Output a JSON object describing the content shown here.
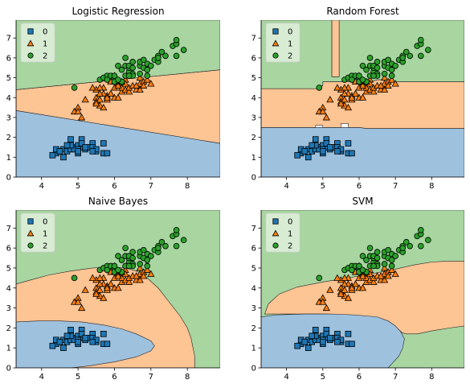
{
  "chart_data": [
    {
      "type": "scatter",
      "title": "Logistic Regression",
      "xlabel": "",
      "ylabel": "",
      "xlim": [
        3.3,
        8.9
      ],
      "ylim": [
        0,
        7.9
      ],
      "xticks": [
        4,
        5,
        6,
        7,
        8
      ],
      "yticks": [
        0,
        1,
        2,
        3,
        4,
        5,
        6,
        7
      ],
      "legend": {
        "position": "top-left",
        "entries": [
          "0",
          "1",
          "2"
        ]
      },
      "regions": [
        {
          "class": "0",
          "polygon": [
            [
              3.3,
              0
            ],
            [
              8.9,
              0
            ],
            [
              8.9,
              1.7
            ],
            [
              3.3,
              3.35
            ]
          ]
        },
        {
          "class": "1",
          "polygon": [
            [
              3.3,
              3.35
            ],
            [
              8.9,
              1.7
            ],
            [
              8.9,
              5.4
            ],
            [
              3.3,
              4.4
            ]
          ]
        },
        {
          "class": "2",
          "polygon": [
            [
              3.3,
              4.4
            ],
            [
              8.9,
              5.4
            ],
            [
              8.9,
              7.9
            ],
            [
              3.3,
              7.9
            ]
          ]
        }
      ]
    },
    {
      "type": "scatter",
      "title": "Random Forest",
      "xlabel": "",
      "ylabel": "",
      "xlim": [
        3.3,
        8.9
      ],
      "ylim": [
        0,
        7.9
      ],
      "xticks": [
        4,
        5,
        6,
        7,
        8
      ],
      "yticks": [
        0,
        1,
        2,
        3,
        4,
        5,
        6,
        7
      ],
      "legend": {
        "position": "top-left",
        "entries": [
          "0",
          "1",
          "2"
        ]
      },
      "regions": [
        {
          "class": "0",
          "polygon": [
            [
              3.3,
              0
            ],
            [
              8.9,
              0
            ],
            [
              8.9,
              2.45
            ],
            [
              6.2,
              2.45
            ],
            [
              6.0,
              2.5
            ],
            [
              5.0,
              2.5
            ],
            [
              4.8,
              2.5
            ],
            [
              3.3,
              2.5
            ]
          ]
        },
        {
          "class": "1",
          "polygon": [
            [
              3.3,
              2.5
            ],
            [
              4.8,
              2.5
            ],
            [
              4.8,
              2.6
            ],
            [
              5.0,
              2.6
            ],
            [
              5.0,
              2.5
            ],
            [
              5.5,
              2.5
            ],
            [
              5.5,
              2.7
            ],
            [
              5.7,
              2.7
            ],
            [
              5.7,
              2.5
            ],
            [
              6.0,
              2.5
            ],
            [
              6.2,
              2.45
            ],
            [
              8.9,
              2.45
            ],
            [
              8.9,
              4.8
            ],
            [
              7.0,
              4.8
            ],
            [
              6.9,
              4.9
            ],
            [
              6.5,
              4.9
            ],
            [
              6.3,
              4.8
            ],
            [
              5.0,
              4.8
            ],
            [
              5.0,
              4.6
            ],
            [
              4.9,
              4.6
            ],
            [
              4.9,
              4.45
            ],
            [
              3.3,
              4.45
            ]
          ]
        },
        {
          "class": "2",
          "polygon": [
            [
              3.3,
              4.45
            ],
            [
              4.9,
              4.45
            ],
            [
              4.9,
              4.6
            ],
            [
              5.0,
              4.6
            ],
            [
              5.0,
              4.8
            ],
            [
              6.3,
              4.8
            ],
            [
              6.5,
              4.9
            ],
            [
              6.9,
              4.9
            ],
            [
              7.0,
              4.8
            ],
            [
              8.9,
              4.8
            ],
            [
              8.9,
              7.9
            ],
            [
              5.45,
              7.9
            ],
            [
              5.45,
              5.05
            ],
            [
              5.25,
              5.05
            ],
            [
              5.25,
              7.9
            ],
            [
              3.3,
              7.9
            ]
          ]
        },
        {
          "class": "1",
          "polygon": [
            [
              5.25,
              5.05
            ],
            [
              5.45,
              5.05
            ],
            [
              5.45,
              7.9
            ],
            [
              5.25,
              7.9
            ]
          ]
        }
      ]
    },
    {
      "type": "scatter",
      "title": "Naive Bayes",
      "xlabel": "",
      "ylabel": "",
      "xlim": [
        3.3,
        8.9
      ],
      "ylim": [
        0,
        7.9
      ],
      "xticks": [
        4,
        5,
        6,
        7,
        8
      ],
      "yticks": [
        0,
        1,
        2,
        3,
        4,
        5,
        6,
        7
      ],
      "legend": {
        "position": "top-left",
        "entries": [
          "0",
          "1",
          "2"
        ]
      },
      "regions": [
        {
          "class": "2",
          "polygon": [
            [
              3.3,
              0
            ],
            [
              8.9,
              0
            ],
            [
              8.9,
              7.9
            ],
            [
              3.3,
              7.9
            ]
          ]
        },
        {
          "class": "1",
          "polygon": [
            [
              3.3,
              0
            ],
            [
              8.2,
              0
            ],
            [
              8.2,
              0.6
            ],
            [
              8.1,
              1.5
            ],
            [
              8.0,
              2.0
            ],
            [
              7.8,
              2.6
            ],
            [
              7.5,
              3.3
            ],
            [
              7.2,
              4.0
            ],
            [
              6.9,
              4.5
            ],
            [
              6.6,
              4.85
            ],
            [
              6.3,
              5.0
            ],
            [
              5.9,
              5.05
            ],
            [
              5.4,
              5.0
            ],
            [
              4.8,
              4.85
            ],
            [
              4.2,
              4.65
            ],
            [
              3.8,
              4.45
            ],
            [
              3.3,
              4.2
            ]
          ]
        },
        {
          "class": "0",
          "polygon": [
            [
              3.3,
              0
            ],
            [
              3.3,
              2.3
            ],
            [
              3.9,
              2.35
            ],
            [
              4.5,
              2.35
            ],
            [
              5.1,
              2.3
            ],
            [
              5.7,
              2.15
            ],
            [
              6.2,
              1.95
            ],
            [
              6.6,
              1.7
            ],
            [
              7.0,
              1.35
            ],
            [
              7.1,
              1.1
            ],
            [
              7.0,
              0.85
            ],
            [
              6.6,
              0.55
            ],
            [
              6.0,
              0.3
            ],
            [
              5.3,
              0.1
            ],
            [
              4.8,
              0
            ],
            [
              3.3,
              0
            ]
          ]
        }
      ]
    },
    {
      "type": "scatter",
      "title": "SVM",
      "xlabel": "",
      "ylabel": "",
      "xlim": [
        3.3,
        8.9
      ],
      "ylim": [
        0,
        7.9
      ],
      "xticks": [
        4,
        5,
        6,
        7,
        8
      ],
      "yticks": [
        0,
        1,
        2,
        3,
        4,
        5,
        6,
        7
      ],
      "legend": {
        "position": "top-left",
        "entries": [
          "0",
          "1",
          "2"
        ]
      },
      "regions": [
        {
          "class": "2",
          "polygon": [
            [
              3.3,
              0
            ],
            [
              8.9,
              0
            ],
            [
              8.9,
              7.9
            ],
            [
              3.3,
              7.9
            ]
          ]
        },
        {
          "class": "1",
          "polygon": [
            [
              3.4,
              2.7
            ],
            [
              3.5,
              3.2
            ],
            [
              3.8,
              3.7
            ],
            [
              4.3,
              4.05
            ],
            [
              5.0,
              4.3
            ],
            [
              5.7,
              4.5
            ],
            [
              6.3,
              4.7
            ],
            [
              6.9,
              4.9
            ],
            [
              7.5,
              5.15
            ],
            [
              8.0,
              5.3
            ],
            [
              8.5,
              5.35
            ],
            [
              8.9,
              5.35
            ],
            [
              8.9,
              2.1
            ],
            [
              8.5,
              2.0
            ],
            [
              8.0,
              1.85
            ],
            [
              7.6,
              1.7
            ],
            [
              7.3,
              1.7
            ],
            [
              7.2,
              1.75
            ],
            [
              7.1,
              1.9
            ],
            [
              7.0,
              2.05
            ],
            [
              6.8,
              2.3
            ],
            [
              6.4,
              2.55
            ],
            [
              5.8,
              2.65
            ],
            [
              5.0,
              2.7
            ],
            [
              4.2,
              2.7
            ],
            [
              3.4,
              2.7
            ]
          ]
        },
        {
          "class": "0",
          "polygon": [
            [
              3.3,
              0
            ],
            [
              3.3,
              2.55
            ],
            [
              3.7,
              2.65
            ],
            [
              4.5,
              2.7
            ],
            [
              5.2,
              2.7
            ],
            [
              5.9,
              2.65
            ],
            [
              6.5,
              2.55
            ],
            [
              6.8,
              2.35
            ],
            [
              7.0,
              2.1
            ],
            [
              7.15,
              1.8
            ],
            [
              7.25,
              1.45
            ],
            [
              7.2,
              1.0
            ],
            [
              7.1,
              0.6
            ],
            [
              6.9,
              0.2
            ],
            [
              6.8,
              0
            ],
            [
              3.3,
              0
            ]
          ]
        }
      ]
    }
  ],
  "classes": [
    {
      "label": "0",
      "marker": "square",
      "color": "#1f77b4"
    },
    {
      "label": "1",
      "marker": "triangle",
      "color": "#ff7f0e"
    },
    {
      "label": "2",
      "marker": "circle",
      "color": "#2ca02c"
    }
  ],
  "region_colors": {
    "0": "#9ec1de",
    "1": "#fdc494",
    "2": "#a8d5a0"
  },
  "points": {
    "0": [
      [
        4.4,
        1.2
      ],
      [
        4.5,
        1.3
      ],
      [
        4.6,
        1.4
      ],
      [
        4.7,
        1.3
      ],
      [
        4.8,
        1.4
      ],
      [
        4.9,
        1.5
      ],
      [
        5.0,
        1.6
      ],
      [
        5.0,
        1.2
      ],
      [
        5.1,
        1.5
      ],
      [
        5.2,
        1.4
      ],
      [
        5.3,
        1.5
      ],
      [
        5.4,
        1.7
      ],
      [
        5.5,
        1.3
      ],
      [
        5.7,
        1.7
      ],
      [
        4.3,
        1.1
      ],
      [
        4.6,
        1.0
      ],
      [
        4.9,
        1.4
      ],
      [
        5.1,
        1.9
      ],
      [
        5.0,
        1.4
      ],
      [
        4.8,
        1.6
      ],
      [
        5.7,
        1.2
      ],
      [
        4.4,
        1.4
      ],
      [
        5.4,
        1.5
      ],
      [
        5.1,
        1.7
      ],
      [
        5.2,
        1.5
      ],
      [
        4.7,
        1.6
      ],
      [
        5.8,
        1.2
      ],
      [
        5.5,
        1.4
      ],
      [
        4.8,
        1.9
      ],
      [
        5.0,
        1.3
      ],
      [
        5.4,
        1.3
      ],
      [
        4.5,
        1.3
      ]
    ],
    "1": [
      [
        4.9,
        3.3
      ],
      [
        5.0,
        3.5
      ],
      [
        5.1,
        3.0
      ],
      [
        5.0,
        3.3
      ],
      [
        5.2,
        3.9
      ],
      [
        5.5,
        4.0
      ],
      [
        5.5,
        3.8
      ],
      [
        5.6,
        3.6
      ],
      [
        5.6,
        3.9
      ],
      [
        5.7,
        3.5
      ],
      [
        5.7,
        4.2
      ],
      [
        5.8,
        4.1
      ],
      [
        5.8,
        3.9
      ],
      [
        5.9,
        4.8
      ],
      [
        6.0,
        4.0
      ],
      [
        6.0,
        4.5
      ],
      [
        6.0,
        5.1
      ],
      [
        6.1,
        4.0
      ],
      [
        6.1,
        4.7
      ],
      [
        6.2,
        4.3
      ],
      [
        6.2,
        4.5
      ],
      [
        6.3,
        4.4
      ],
      [
        6.3,
        4.9
      ],
      [
        6.4,
        4.3
      ],
      [
        6.4,
        4.5
      ],
      [
        6.5,
        4.6
      ],
      [
        6.6,
        4.4
      ],
      [
        6.7,
        4.4
      ],
      [
        6.7,
        4.7
      ],
      [
        6.7,
        5.0
      ],
      [
        6.8,
        4.8
      ],
      [
        6.9,
        4.9
      ],
      [
        7.0,
        4.7
      ],
      [
        5.5,
        4.4
      ],
      [
        5.6,
        4.2
      ],
      [
        5.7,
        4.5
      ],
      [
        5.8,
        4.0
      ],
      [
        6.1,
        4.6
      ],
      [
        6.3,
        4.7
      ],
      [
        6.6,
        4.6
      ],
      [
        5.4,
        4.5
      ],
      [
        5.9,
        4.2
      ],
      [
        6.0,
        4.8
      ],
      [
        5.6,
        4.5
      ],
      [
        6.2,
        4.8
      ],
      [
        5.5,
        3.7
      ],
      [
        6.8,
        4.6
      ]
    ],
    "2": [
      [
        4.9,
        4.5
      ],
      [
        5.6,
        4.9
      ],
      [
        5.7,
        5.0
      ],
      [
        5.8,
        5.1
      ],
      [
        5.9,
        5.1
      ],
      [
        6.0,
        5.0
      ],
      [
        6.1,
        5.6
      ],
      [
        6.2,
        5.4
      ],
      [
        6.3,
        5.6
      ],
      [
        6.3,
        6.0
      ],
      [
        6.4,
        5.3
      ],
      [
        6.4,
        5.5
      ],
      [
        6.5,
        5.2
      ],
      [
        6.5,
        5.8
      ],
      [
        6.7,
        5.6
      ],
      [
        6.7,
        5.8
      ],
      [
        6.7,
        5.2
      ],
      [
        6.8,
        5.5
      ],
      [
        6.8,
        5.9
      ],
      [
        6.9,
        5.4
      ],
      [
        6.9,
        5.7
      ],
      [
        7.1,
        5.9
      ],
      [
        7.2,
        5.8
      ],
      [
        7.2,
        6.1
      ],
      [
        7.3,
        6.3
      ],
      [
        7.4,
        6.1
      ],
      [
        7.6,
        6.6
      ],
      [
        7.7,
        6.7
      ],
      [
        7.7,
        6.9
      ],
      [
        7.9,
        6.4
      ],
      [
        6.0,
        4.8
      ],
      [
        6.3,
        5.1
      ],
      [
        6.4,
        5.6
      ],
      [
        6.5,
        5.5
      ],
      [
        6.2,
        4.8
      ],
      [
        6.1,
        4.9
      ],
      [
        6.5,
        5.1
      ],
      [
        7.7,
        6.1
      ],
      [
        7.0,
        5.6
      ],
      [
        6.9,
        5.1
      ],
      [
        7.2,
        6.0
      ],
      [
        6.4,
        5.1
      ],
      [
        6.0,
        5.1
      ],
      [
        5.8,
        4.9
      ]
    ]
  }
}
